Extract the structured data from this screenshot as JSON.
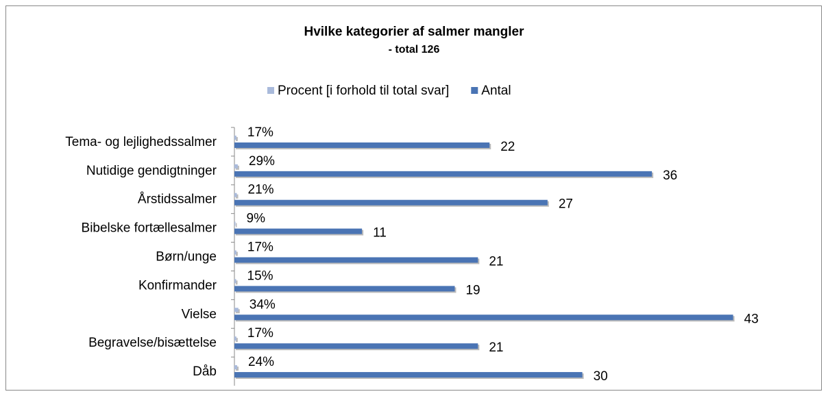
{
  "chart_data": {
    "type": "bar",
    "orientation": "horizontal",
    "title": "Hvilke kategorier af salmer mangler",
    "subtitle": "- total 126",
    "categories": [
      "Tema- og lejlighedssalmer",
      "Nutidige gendigtninger",
      "Årstidssalmer",
      "Bibelske fortællesalmer",
      "Børn/unge",
      "Konfirmander",
      "Vielse",
      "Begravelse/bisættelse",
      "Dåb"
    ],
    "series": [
      {
        "name": "Procent [i forhold til total svar]",
        "color": "#a9badb",
        "values": [
          0.17,
          0.29,
          0.21,
          0.09,
          0.17,
          0.15,
          0.34,
          0.17,
          0.24
        ],
        "value_labels": [
          "17%",
          "29%",
          "21%",
          "9%",
          "17%",
          "15%",
          "34%",
          "17%",
          "24%"
        ]
      },
      {
        "name": "Antal",
        "color": "#4a74b4",
        "values": [
          22,
          36,
          27,
          11,
          21,
          19,
          43,
          21,
          30
        ]
      }
    ],
    "xlim": [
      0,
      50
    ],
    "legend": "top"
  }
}
